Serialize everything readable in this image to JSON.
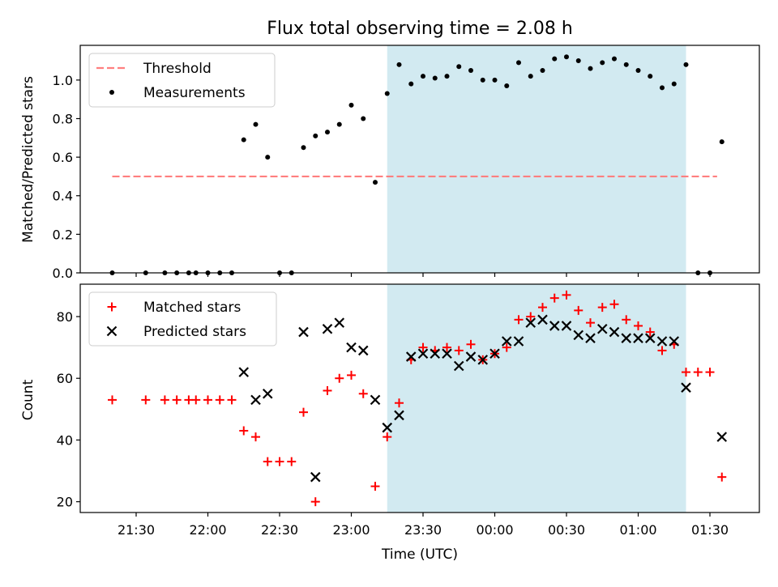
{
  "chart_data": [
    {
      "type": "scatter",
      "title": "Flux total observing time = 2.08 h",
      "ylabel": "Matched/Predicted stars",
      "ylim": [
        0,
        1.18
      ],
      "yticks": [
        "0.0",
        "0.2",
        "0.4",
        "0.6",
        "0.8",
        "1.0"
      ],
      "legend": {
        "placement": "top-left",
        "entries": [
          "Threshold",
          "Measurements"
        ]
      },
      "threshold": {
        "name": "Threshold",
        "value": 0.5,
        "x_start": "21:20",
        "x_end": "01:33",
        "color": "#ff7f7f"
      },
      "highlight": {
        "x_start": "23:15",
        "x_end": "01:20",
        "color": "#add8e6"
      },
      "series": [
        {
          "name": "Measurements",
          "color": "#000000",
          "marker": "dot",
          "points": [
            [
              "21:20",
              0.0
            ],
            [
              "21:34",
              0.0
            ],
            [
              "21:42",
              0.0
            ],
            [
              "21:47",
              0.0
            ],
            [
              "21:52",
              0.0
            ],
            [
              "21:55",
              0.0
            ],
            [
              "22:00",
              0.0
            ],
            [
              "22:05",
              0.0
            ],
            [
              "22:10",
              0.0
            ],
            [
              "22:15",
              0.69
            ],
            [
              "22:20",
              0.77
            ],
            [
              "22:25",
              0.6
            ],
            [
              "22:30",
              0.0
            ],
            [
              "22:35",
              0.0
            ],
            [
              "22:40",
              0.65
            ],
            [
              "22:45",
              0.71
            ],
            [
              "22:50",
              0.73
            ],
            [
              "22:55",
              0.77
            ],
            [
              "23:00",
              0.87
            ],
            [
              "23:05",
              0.8
            ],
            [
              "23:10",
              0.47
            ],
            [
              "23:15",
              0.93
            ],
            [
              "23:20",
              1.08
            ],
            [
              "23:25",
              0.98
            ],
            [
              "23:30",
              1.02
            ],
            [
              "23:35",
              1.01
            ],
            [
              "23:40",
              1.02
            ],
            [
              "23:45",
              1.07
            ],
            [
              "23:50",
              1.05
            ],
            [
              "23:55",
              1.0
            ],
            [
              "00:00",
              1.0
            ],
            [
              "00:05",
              0.97
            ],
            [
              "00:10",
              1.09
            ],
            [
              "00:15",
              1.02
            ],
            [
              "00:20",
              1.05
            ],
            [
              "00:25",
              1.11
            ],
            [
              "00:30",
              1.12
            ],
            [
              "00:35",
              1.1
            ],
            [
              "00:40",
              1.06
            ],
            [
              "00:45",
              1.09
            ],
            [
              "00:50",
              1.11
            ],
            [
              "00:55",
              1.08
            ],
            [
              "01:00",
              1.05
            ],
            [
              "01:05",
              1.02
            ],
            [
              "01:10",
              0.96
            ],
            [
              "01:15",
              0.98
            ],
            [
              "01:20",
              1.08
            ],
            [
              "01:25",
              0.0
            ],
            [
              "01:30",
              0.0
            ],
            [
              "01:35",
              0.68
            ]
          ]
        }
      ]
    },
    {
      "type": "scatter",
      "xlabel": "Time (UTC)",
      "ylabel": "Count",
      "ylim": [
        16.5,
        90.5
      ],
      "yticks": [
        "20",
        "40",
        "60",
        "80"
      ],
      "xticks": [
        "21:30",
        "22:00",
        "22:30",
        "23:00",
        "23:30",
        "00:00",
        "00:30",
        "01:00",
        "01:30"
      ],
      "legend": {
        "placement": "top-left",
        "entries": [
          "Matched stars",
          "Predicted stars"
        ]
      },
      "highlight": {
        "x_start": "23:15",
        "x_end": "01:20",
        "color": "#add8e6"
      },
      "series": [
        {
          "name": "Matched stars",
          "color": "#ff0000",
          "marker": "plus",
          "points": [
            [
              "21:20",
              53
            ],
            [
              "21:34",
              53
            ],
            [
              "21:42",
              53
            ],
            [
              "21:47",
              53
            ],
            [
              "21:52",
              53
            ],
            [
              "21:55",
              53
            ],
            [
              "22:00",
              53
            ],
            [
              "22:05",
              53
            ],
            [
              "22:10",
              53
            ],
            [
              "22:15",
              43
            ],
            [
              "22:20",
              41
            ],
            [
              "22:25",
              33
            ],
            [
              "22:30",
              33
            ],
            [
              "22:35",
              33
            ],
            [
              "22:40",
              49
            ],
            [
              "22:45",
              20
            ],
            [
              "22:50",
              56
            ],
            [
              "22:55",
              60
            ],
            [
              "23:00",
              61
            ],
            [
              "23:05",
              55
            ],
            [
              "23:10",
              25
            ],
            [
              "23:15",
              41
            ],
            [
              "23:20",
              52
            ],
            [
              "23:25",
              66
            ],
            [
              "23:30",
              70
            ],
            [
              "23:35",
              69
            ],
            [
              "23:40",
              70
            ],
            [
              "23:45",
              69
            ],
            [
              "23:50",
              71
            ],
            [
              "23:55",
              66
            ],
            [
              "00:00",
              68
            ],
            [
              "00:05",
              70
            ],
            [
              "00:10",
              79
            ],
            [
              "00:15",
              80
            ],
            [
              "00:20",
              83
            ],
            [
              "00:25",
              86
            ],
            [
              "00:30",
              87
            ],
            [
              "00:35",
              82
            ],
            [
              "00:40",
              78
            ],
            [
              "00:45",
              83
            ],
            [
              "00:50",
              84
            ],
            [
              "00:55",
              79
            ],
            [
              "01:00",
              77
            ],
            [
              "01:05",
              75
            ],
            [
              "01:10",
              69
            ],
            [
              "01:15",
              71
            ],
            [
              "01:20",
              62
            ],
            [
              "01:25",
              62
            ],
            [
              "01:30",
              62
            ],
            [
              "01:35",
              28
            ]
          ]
        },
        {
          "name": "Predicted stars",
          "color": "#000000",
          "marker": "x",
          "points": [
            [
              "22:15",
              62
            ],
            [
              "22:20",
              53
            ],
            [
              "22:25",
              55
            ],
            [
              "22:40",
              75
            ],
            [
              "22:45",
              28
            ],
            [
              "22:50",
              76
            ],
            [
              "22:55",
              78
            ],
            [
              "23:00",
              70
            ],
            [
              "23:05",
              69
            ],
            [
              "23:10",
              53
            ],
            [
              "23:15",
              44
            ],
            [
              "23:20",
              48
            ],
            [
              "23:25",
              67
            ],
            [
              "23:30",
              68
            ],
            [
              "23:35",
              68
            ],
            [
              "23:40",
              68
            ],
            [
              "23:45",
              64
            ],
            [
              "23:50",
              67
            ],
            [
              "23:55",
              66
            ],
            [
              "00:00",
              68
            ],
            [
              "00:05",
              72
            ],
            [
              "00:10",
              72
            ],
            [
              "00:15",
              78
            ],
            [
              "00:20",
              79
            ],
            [
              "00:25",
              77
            ],
            [
              "00:30",
              77
            ],
            [
              "00:35",
              74
            ],
            [
              "00:40",
              73
            ],
            [
              "00:45",
              76
            ],
            [
              "00:50",
              75
            ],
            [
              "00:55",
              73
            ],
            [
              "01:00",
              73
            ],
            [
              "01:05",
              73
            ],
            [
              "01:10",
              72
            ],
            [
              "01:15",
              72
            ],
            [
              "01:20",
              57
            ],
            [
              "01:35",
              41
            ]
          ]
        }
      ]
    }
  ]
}
